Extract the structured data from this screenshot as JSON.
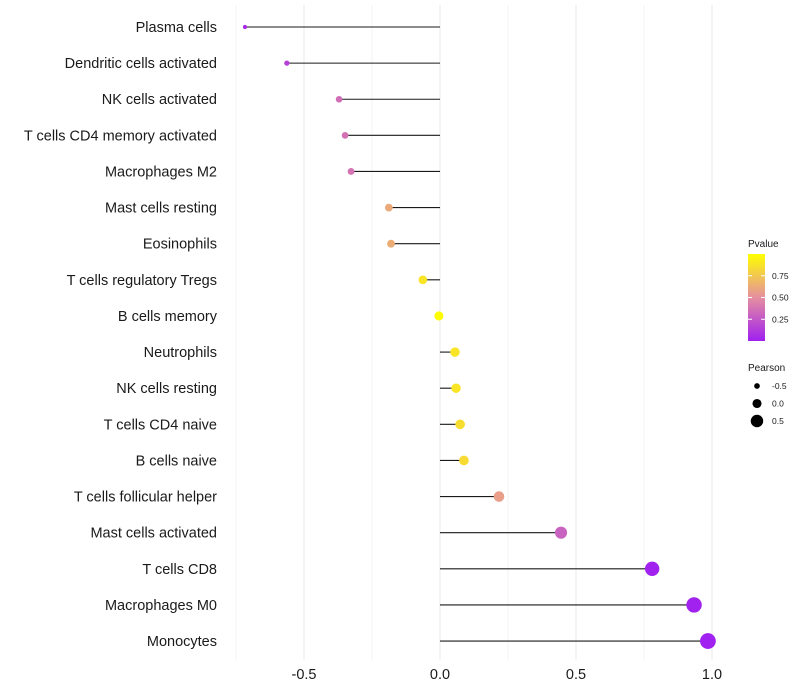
{
  "chart_data": {
    "type": "lollipop",
    "title": "",
    "xlabel": "",
    "ylabel": "",
    "xlim": [
      -0.75,
      1.05
    ],
    "x_ticks": [
      -0.5,
      0.0,
      0.5,
      1.0
    ],
    "x_tick_labels": [
      "-0.5",
      "0.0",
      "0.5",
      "1.0"
    ],
    "x_minor_gridlines": [
      -0.75,
      -0.25,
      0.25,
      0.75
    ],
    "grid": true,
    "baseline": 0,
    "categories": [
      "Plasma cells",
      "Dendritic cells activated",
      "NK cells activated",
      "T cells CD4 memory activated",
      "Macrophages M2",
      "Mast cells resting",
      "Eosinophils",
      "T cells regulatory  Tregs ",
      "B cells memory",
      "Neutrophils",
      "NK cells resting",
      "T cells CD4 naive",
      "B cells naive",
      "T cells follicular helper",
      "Mast cells activated",
      "T cells CD8",
      "Macrophages M0",
      "Monocytes"
    ],
    "series": [
      {
        "name": "Pearson",
        "values": [
          -0.717,
          -0.563,
          -0.371,
          -0.349,
          -0.327,
          -0.188,
          -0.18,
          -0.063,
          -0.004,
          0.055,
          0.059,
          0.074,
          0.088,
          0.217,
          0.445,
          0.78,
          0.934,
          0.985
        ]
      },
      {
        "name": "Pvalue",
        "values": [
          0.05,
          0.15,
          0.35,
          0.37,
          0.38,
          0.62,
          0.63,
          0.88,
          0.99,
          0.88,
          0.88,
          0.85,
          0.84,
          0.57,
          0.3,
          0.01,
          0.005,
          0.003
        ]
      }
    ],
    "legend": {
      "placement": "right",
      "color": {
        "title": "Pvalue",
        "low_color": "#A020F0",
        "mid_color": "#E58FA0",
        "high_color": "#FFFF00",
        "range": [
          0,
          1
        ],
        "ticks": [
          0.75,
          0.5,
          0.25
        ],
        "tick_labels": [
          "0.75",
          "0.50",
          "0.25"
        ]
      },
      "size": {
        "title": "Pearson",
        "entries": [
          -0.5,
          0.0,
          0.5
        ],
        "entry_labels": [
          "-0.5",
          "0.0",
          "0.5"
        ]
      }
    },
    "colors": {
      "segment": "#1a1a1a",
      "grid": "#ebebeb",
      "text": "#1a1a1a"
    }
  }
}
